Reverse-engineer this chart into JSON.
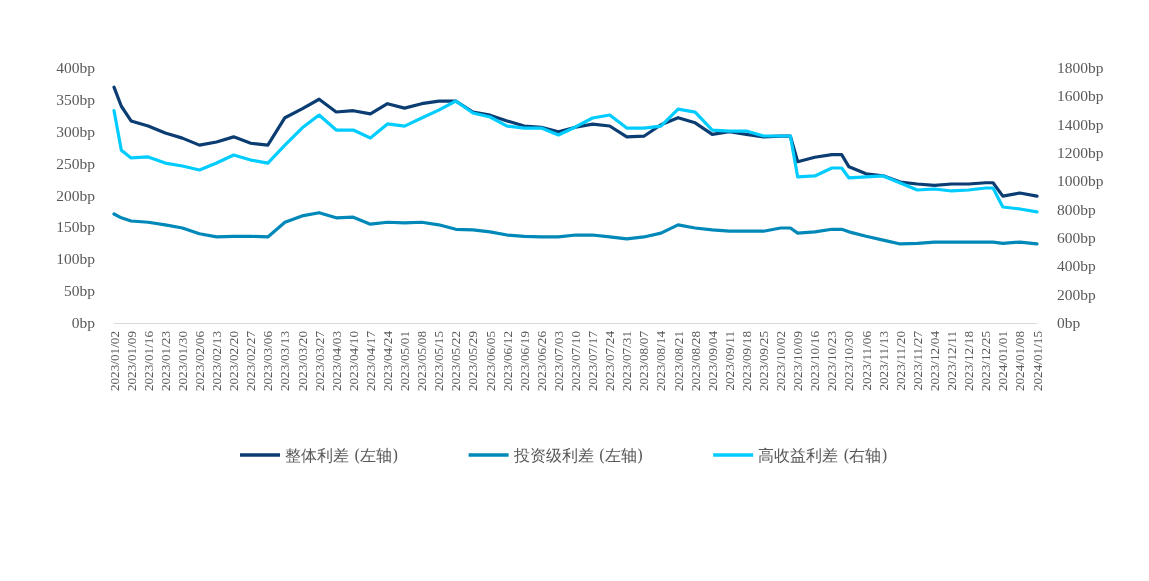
{
  "chart_data": {
    "type": "line",
    "legend": "bottom",
    "grid": false,
    "marker": "none",
    "line_style": "solid",
    "x": [
      "2023-01-02",
      "2023-01-05",
      "2023-01-09",
      "2023-01-16",
      "2023-01-23",
      "2023-01-30",
      "2023-02-06",
      "2023-02-13",
      "2023-02-20",
      "2023-02-27",
      "2023-03-06",
      "2023-03-13",
      "2023-03-20",
      "2023-03-27",
      "2023-04-03",
      "2023-04-10",
      "2023-04-17",
      "2023-04-24",
      "2023-05-01",
      "2023-05-08",
      "2023-05-15",
      "2023-05-22",
      "2023-05-29",
      "2023-06-05",
      "2023-06-12",
      "2023-06-19",
      "2023-06-26",
      "2023-07-03",
      "2023-07-10",
      "2023-07-17",
      "2023-07-24",
      "2023-07-31",
      "2023-08-07",
      "2023-08-14",
      "2023-08-21",
      "2023-08-28",
      "2023-09-04",
      "2023-09-11",
      "2023-09-18",
      "2023-09-25",
      "2023-10-02",
      "2023-10-06",
      "2023-10-09",
      "2023-10-16",
      "2023-10-23",
      "2023-10-27",
      "2023-10-30",
      "2023-11-06",
      "2023-11-13",
      "2023-11-20",
      "2023-11-27",
      "2023-12-04",
      "2023-12-11",
      "2023-12-18",
      "2023-12-25",
      "2023-12-28",
      "2024-01-01",
      "2024-01-08",
      "2024-01-15"
    ],
    "series": [
      {
        "name": "整体利差 (左轴)",
        "color": "#0b3d73",
        "axis": "y",
        "values": [
          370,
          340,
          317,
          309,
          298,
          290,
          279,
          284,
          292,
          282,
          279,
          322,
          336,
          351,
          331,
          333,
          328,
          344,
          337,
          344,
          348,
          348,
          331,
          326,
          317,
          309,
          307,
          300,
          307,
          312,
          309,
          292,
          293,
          311,
          322,
          314,
          296,
          300,
          296,
          292,
          293,
          293,
          253,
          260,
          264,
          264,
          245,
          234,
          231,
          221,
          218,
          216,
          218,
          218,
          220,
          220,
          199,
          204,
          199
        ]
      },
      {
        "name": "投资级利差 (左轴)",
        "color": "#0088b8",
        "axis": "y",
        "values": [
          171,
          165,
          160,
          158,
          154,
          149,
          140,
          135,
          136,
          136,
          135,
          158,
          168,
          173,
          165,
          166,
          155,
          158,
          157,
          158,
          154,
          147,
          146,
          143,
          138,
          136,
          135,
          135,
          138,
          138,
          135,
          132,
          135,
          141,
          154,
          149,
          146,
          144,
          144,
          144,
          149,
          149,
          141,
          143,
          147,
          147,
          143,
          136,
          130,
          124,
          125,
          127,
          127,
          127,
          127,
          127,
          125,
          127,
          124
        ]
      },
      {
        "name": "高收益利差 (右轴)",
        "color": "#00ccff",
        "axis": "y2",
        "values": [
          1500,
          1220,
          1165,
          1172,
          1129,
          1108,
          1080,
          1129,
          1186,
          1150,
          1129,
          1256,
          1376,
          1468,
          1362,
          1362,
          1306,
          1405,
          1390,
          1447,
          1503,
          1567,
          1482,
          1454,
          1390,
          1376,
          1376,
          1327,
          1384,
          1447,
          1468,
          1376,
          1376,
          1390,
          1510,
          1489,
          1362,
          1355,
          1355,
          1320,
          1320,
          1320,
          1031,
          1038,
          1094,
          1094,
          1024,
          1031,
          1038,
          988,
          939,
          946,
          932,
          939,
          953,
          953,
          819,
          805,
          784
        ]
      }
    ],
    "xlim": [
      "2023-01-02",
      "2024-01-15"
    ],
    "xticks": [
      {
        "value": "2023-01-02",
        "label": "2023/01/02"
      },
      {
        "value": "2023-01-09",
        "label": "2023/01/09"
      },
      {
        "value": "2023-01-16",
        "label": "2023/01/16"
      },
      {
        "value": "2023-01-23",
        "label": "2023/01/23"
      },
      {
        "value": "2023-01-30",
        "label": "2023/01/30"
      },
      {
        "value": "2023-02-06",
        "label": "2023/02/06"
      },
      {
        "value": "2023-02-13",
        "label": "2023/02/13"
      },
      {
        "value": "2023-02-20",
        "label": "2023/02/20"
      },
      {
        "value": "2023-02-27",
        "label": "2023/02/27"
      },
      {
        "value": "2023-03-06",
        "label": "2023/03/06"
      },
      {
        "value": "2023-03-13",
        "label": "2023/03/13"
      },
      {
        "value": "2023-03-20",
        "label": "2023/03/20"
      },
      {
        "value": "2023-03-27",
        "label": "2023/03/27"
      },
      {
        "value": "2023-04-03",
        "label": "2023/04/03"
      },
      {
        "value": "2023-04-10",
        "label": "2023/04/10"
      },
      {
        "value": "2023-04-17",
        "label": "2023/04/17"
      },
      {
        "value": "2023-04-24",
        "label": "2023/04/24"
      },
      {
        "value": "2023-05-01",
        "label": "2023/05/01"
      },
      {
        "value": "2023-05-08",
        "label": "2023/05/08"
      },
      {
        "value": "2023-05-15",
        "label": "2023/05/15"
      },
      {
        "value": "2023-05-22",
        "label": "2023/05/22"
      },
      {
        "value": "2023-05-29",
        "label": "2023/05/29"
      },
      {
        "value": "2023-06-05",
        "label": "2023/06/05"
      },
      {
        "value": "2023-06-12",
        "label": "2023/06/12"
      },
      {
        "value": "2023-06-19",
        "label": "2023/06/19"
      },
      {
        "value": "2023-06-26",
        "label": "2023/06/26"
      },
      {
        "value": "2023-07-03",
        "label": "2023/07/03"
      },
      {
        "value": "2023-07-10",
        "label": "2023/07/10"
      },
      {
        "value": "2023-07-17",
        "label": "2023/07/17"
      },
      {
        "value": "2023-07-24",
        "label": "2023/07/24"
      },
      {
        "value": "2023-07-31",
        "label": "2023/07/31"
      },
      {
        "value": "2023-08-07",
        "label": "2023/08/07"
      },
      {
        "value": "2023-08-14",
        "label": "2023/08/14"
      },
      {
        "value": "2023-08-21",
        "label": "2023/08/21"
      },
      {
        "value": "2023-08-28",
        "label": "2023/08/28"
      },
      {
        "value": "2023-09-04",
        "label": "2023/09/04"
      },
      {
        "value": "2023-09-11",
        "label": "2023/09/11"
      },
      {
        "value": "2023-09-18",
        "label": "2023/09/18"
      },
      {
        "value": "2023-09-25",
        "label": "2023/09/25"
      },
      {
        "value": "2023-10-02",
        "label": "2023/10/02"
      },
      {
        "value": "2023-10-09",
        "label": "2023/10/09"
      },
      {
        "value": "2023-10-16",
        "label": "2023/10/16"
      },
      {
        "value": "2023-10-23",
        "label": "2023/10/23"
      },
      {
        "value": "2023-10-30",
        "label": "2023/10/30"
      },
      {
        "value": "2023-11-06",
        "label": "2023/11/06"
      },
      {
        "value": "2023-11-13",
        "label": "2023/11/13"
      },
      {
        "value": "2023-11-20",
        "label": "2023/11/20"
      },
      {
        "value": "2023-11-27",
        "label": "2023/11/27"
      },
      {
        "value": "2023-12-04",
        "label": "2023/12/04"
      },
      {
        "value": "2023-12-11",
        "label": "2023/12/11"
      },
      {
        "value": "2023-12-18",
        "label": "2023/12/18"
      },
      {
        "value": "2023-12-25",
        "label": "2023/12/25"
      },
      {
        "value": "2024-01-01",
        "label": "2024/01/01"
      },
      {
        "value": "2024-01-08",
        "label": "2024/01/08"
      },
      {
        "value": "2024-01-15",
        "label": "2024/01/15"
      }
    ],
    "ylim": [
      0,
      400
    ],
    "yticks": [
      {
        "value": 0,
        "label": "0bp"
      },
      {
        "value": 50,
        "label": "50bp"
      },
      {
        "value": 100,
        "label": "100bp"
      },
      {
        "value": 150,
        "label": "150bp"
      },
      {
        "value": 200,
        "label": "200bp"
      },
      {
        "value": 250,
        "label": "250bp"
      },
      {
        "value": 300,
        "label": "300bp"
      },
      {
        "value": 350,
        "label": "350bp"
      },
      {
        "value": 400,
        "label": "400bp"
      }
    ],
    "y2lim": [
      0,
      1800
    ],
    "y2ticks": [
      {
        "value": 0,
        "label": "0bp"
      },
      {
        "value": 200,
        "label": "200bp"
      },
      {
        "value": 400,
        "label": "400bp"
      },
      {
        "value": 600,
        "label": "600bp"
      },
      {
        "value": 800,
        "label": "800bp"
      },
      {
        "value": 1000,
        "label": "1000bp"
      },
      {
        "value": 1200,
        "label": "1200bp"
      },
      {
        "value": 1400,
        "label": "1400bp"
      },
      {
        "value": 1600,
        "label": "1600bp"
      },
      {
        "value": 1800,
        "label": "1800bp"
      }
    ]
  }
}
